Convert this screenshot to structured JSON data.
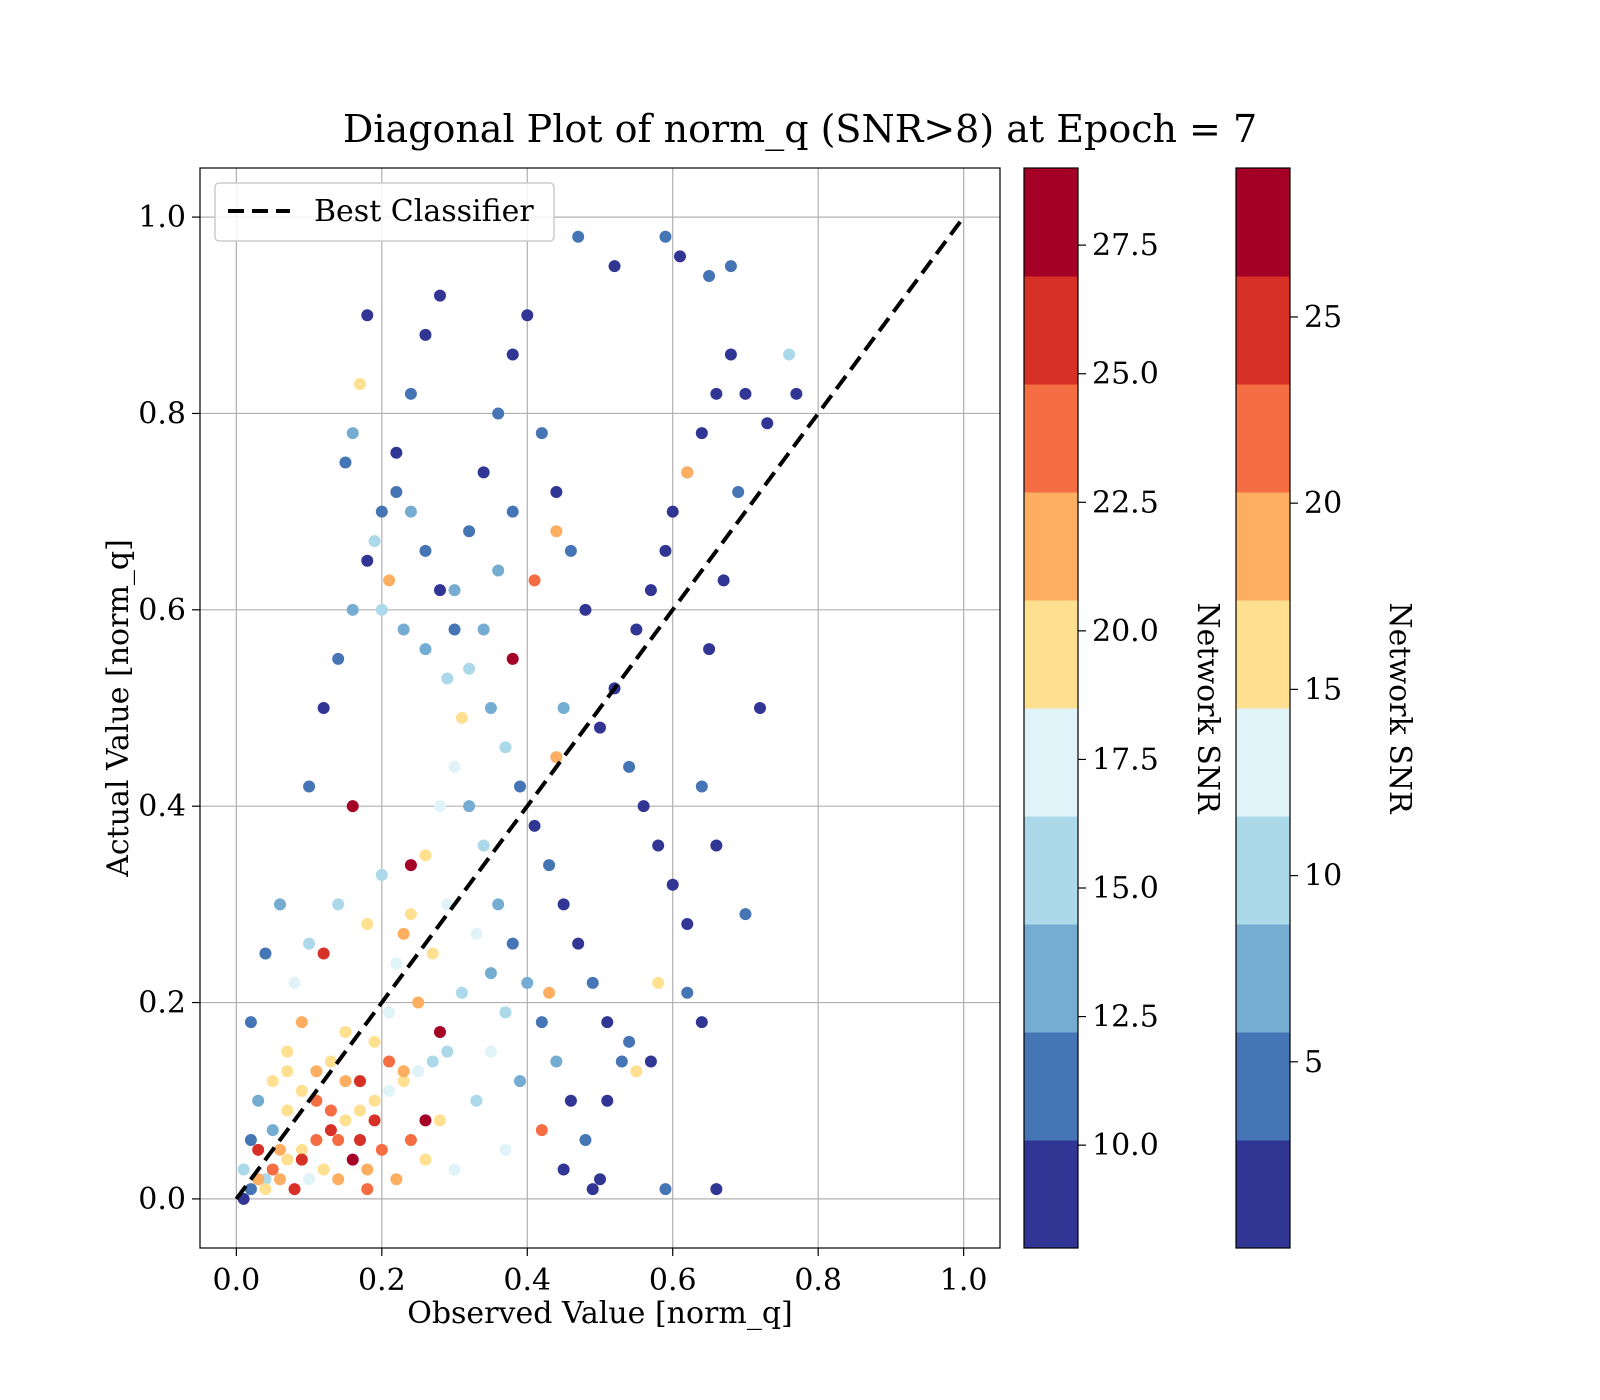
{
  "chart_data": {
    "type": "scatter",
    "title": "Diagonal Plot of norm_q (SNR>8) at Epoch = 7",
    "xlabel": "Observed Value [norm_q]",
    "ylabel": "Actual Value [norm_q]",
    "xlim": [
      -0.05,
      1.05
    ],
    "ylim": [
      -0.05,
      1.05
    ],
    "xticks": [
      "0.0",
      "0.2",
      "0.4",
      "0.6",
      "0.8",
      "1.0"
    ],
    "yticks": [
      "0.0",
      "0.2",
      "0.4",
      "0.6",
      "0.8",
      "1.0"
    ],
    "grid": true,
    "legend": {
      "placement": "upper-left",
      "entries": [
        {
          "label": "Best Classifier",
          "style": "dashed",
          "color": "#000000"
        }
      ]
    },
    "reference_line": {
      "label": "Best Classifier",
      "points": [
        [
          0.0,
          0.0
        ],
        [
          1.0,
          1.0
        ]
      ]
    },
    "colormap": "RdYlBu_r",
    "colormap_bins": [
      "#313695",
      "#4575b4",
      "#74add1",
      "#abd9e9",
      "#e0f3f8",
      "#fee090",
      "#fdae61",
      "#f46d43",
      "#d73027",
      "#a50026"
    ],
    "colorbars": [
      {
        "label": "Network SNR",
        "range": [
          8.0,
          29.0
        ],
        "tick_values": [
          10.0,
          12.5,
          15.0,
          17.5,
          20.0,
          22.5,
          25.0,
          27.5
        ],
        "tick_labels": [
          "10.0",
          "12.5",
          "15.0",
          "17.5",
          "20.0",
          "22.5",
          "25.0",
          "27.5"
        ]
      },
      {
        "label": "Network SNR",
        "range": [
          0.0,
          29.0
        ],
        "tick_values": [
          5,
          10,
          15,
          20,
          25
        ],
        "tick_labels": [
          "5",
          "10",
          "15",
          "20",
          "25"
        ]
      }
    ],
    "points": [
      [
        0.01,
        0.0,
        9
      ],
      [
        0.02,
        0.01,
        12
      ],
      [
        0.03,
        0.02,
        22
      ],
      [
        0.04,
        0.01,
        20
      ],
      [
        0.05,
        0.03,
        24
      ],
      [
        0.06,
        0.02,
        21
      ],
      [
        0.07,
        0.04,
        19
      ],
      [
        0.08,
        0.01,
        26
      ],
      [
        0.09,
        0.05,
        20
      ],
      [
        0.1,
        0.02,
        18
      ],
      [
        0.11,
        0.06,
        23
      ],
      [
        0.12,
        0.03,
        19
      ],
      [
        0.13,
        0.07,
        25
      ],
      [
        0.14,
        0.02,
        21
      ],
      [
        0.15,
        0.08,
        20
      ],
      [
        0.16,
        0.04,
        27
      ],
      [
        0.17,
        0.09,
        19
      ],
      [
        0.18,
        0.03,
        22
      ],
      [
        0.19,
        0.1,
        20
      ],
      [
        0.2,
        0.05,
        24
      ],
      [
        0.21,
        0.11,
        18
      ],
      [
        0.22,
        0.02,
        21
      ],
      [
        0.23,
        0.12,
        19
      ],
      [
        0.24,
        0.06,
        23
      ],
      [
        0.25,
        0.13,
        17
      ],
      [
        0.26,
        0.04,
        20
      ],
      [
        0.27,
        0.14,
        16
      ],
      [
        0.28,
        0.08,
        19
      ],
      [
        0.29,
        0.15,
        15
      ],
      [
        0.3,
        0.03,
        18
      ],
      [
        0.05,
        0.12,
        20
      ],
      [
        0.07,
        0.15,
        19
      ],
      [
        0.09,
        0.18,
        21
      ],
      [
        0.11,
        0.1,
        24
      ],
      [
        0.13,
        0.14,
        20
      ],
      [
        0.15,
        0.17,
        19
      ],
      [
        0.17,
        0.12,
        25
      ],
      [
        0.19,
        0.16,
        20
      ],
      [
        0.21,
        0.19,
        18
      ],
      [
        0.23,
        0.13,
        21
      ],
      [
        0.12,
        0.25,
        26
      ],
      [
        0.16,
        0.4,
        28
      ],
      [
        0.24,
        0.34,
        27
      ],
      [
        0.28,
        0.17,
        28
      ],
      [
        0.38,
        0.55,
        28
      ],
      [
        0.26,
        0.08,
        27
      ],
      [
        0.03,
        0.05,
        26
      ],
      [
        0.09,
        0.04,
        25
      ],
      [
        0.14,
        0.06,
        24
      ],
      [
        0.18,
        0.01,
        23
      ],
      [
        0.08,
        0.22,
        17
      ],
      [
        0.1,
        0.26,
        16
      ],
      [
        0.14,
        0.3,
        15
      ],
      [
        0.18,
        0.28,
        19
      ],
      [
        0.22,
        0.24,
        18
      ],
      [
        0.2,
        0.33,
        16
      ],
      [
        0.24,
        0.29,
        19
      ],
      [
        0.26,
        0.35,
        20
      ],
      [
        0.28,
        0.4,
        17
      ],
      [
        0.3,
        0.44,
        18
      ],
      [
        0.1,
        0.42,
        12
      ],
      [
        0.12,
        0.5,
        10
      ],
      [
        0.14,
        0.55,
        11
      ],
      [
        0.16,
        0.6,
        13
      ],
      [
        0.18,
        0.65,
        9
      ],
      [
        0.2,
        0.7,
        12
      ],
      [
        0.22,
        0.76,
        10
      ],
      [
        0.24,
        0.82,
        11
      ],
      [
        0.26,
        0.88,
        9
      ],
      [
        0.28,
        0.92,
        10
      ],
      [
        0.3,
        0.62,
        13
      ],
      [
        0.32,
        0.68,
        12
      ],
      [
        0.34,
        0.74,
        9
      ],
      [
        0.36,
        0.8,
        11
      ],
      [
        0.38,
        0.86,
        10
      ],
      [
        0.4,
        0.9,
        9
      ],
      [
        0.42,
        0.78,
        12
      ],
      [
        0.44,
        0.72,
        10
      ],
      [
        0.46,
        0.66,
        11
      ],
      [
        0.48,
        0.6,
        9
      ],
      [
        0.32,
        0.4,
        14
      ],
      [
        0.34,
        0.36,
        15
      ],
      [
        0.36,
        0.3,
        13
      ],
      [
        0.38,
        0.26,
        12
      ],
      [
        0.4,
        0.22,
        14
      ],
      [
        0.42,
        0.18,
        11
      ],
      [
        0.44,
        0.14,
        13
      ],
      [
        0.46,
        0.1,
        10
      ],
      [
        0.48,
        0.06,
        12
      ],
      [
        0.5,
        0.02,
        9
      ],
      [
        0.35,
        0.5,
        13
      ],
      [
        0.37,
        0.46,
        16
      ],
      [
        0.39,
        0.42,
        12
      ],
      [
        0.41,
        0.38,
        10
      ],
      [
        0.43,
        0.34,
        11
      ],
      [
        0.45,
        0.3,
        9
      ],
      [
        0.47,
        0.26,
        10
      ],
      [
        0.49,
        0.22,
        12
      ],
      [
        0.51,
        0.18,
        9
      ],
      [
        0.53,
        0.14,
        11
      ],
      [
        0.5,
        0.48,
        10
      ],
      [
        0.52,
        0.52,
        9
      ],
      [
        0.54,
        0.44,
        11
      ],
      [
        0.56,
        0.4,
        9
      ],
      [
        0.58,
        0.36,
        10
      ],
      [
        0.6,
        0.32,
        9
      ],
      [
        0.62,
        0.28,
        10
      ],
      [
        0.55,
        0.58,
        9
      ],
      [
        0.57,
        0.62,
        10
      ],
      [
        0.59,
        0.66,
        9
      ],
      [
        0.6,
        0.7,
        10
      ],
      [
        0.62,
        0.74,
        11
      ],
      [
        0.64,
        0.78,
        9
      ],
      [
        0.66,
        0.82,
        10
      ],
      [
        0.68,
        0.86,
        9
      ],
      [
        0.61,
        0.96,
        10
      ],
      [
        0.59,
        0.98,
        11
      ],
      [
        0.47,
        0.98,
        12
      ],
      [
        0.52,
        0.95,
        9
      ],
      [
        0.65,
        0.94,
        11
      ],
      [
        0.68,
        0.95,
        12
      ],
      [
        0.7,
        0.82,
        9
      ],
      [
        0.72,
        0.5,
        9
      ],
      [
        0.7,
        0.29,
        12
      ],
      [
        0.66,
        0.36,
        9
      ],
      [
        0.64,
        0.42,
        11
      ],
      [
        0.65,
        0.56,
        10
      ],
      [
        0.67,
        0.63,
        9
      ],
      [
        0.69,
        0.72,
        11
      ],
      [
        0.77,
        0.82,
        9
      ],
      [
        0.76,
        0.86,
        15
      ],
      [
        0.73,
        0.79,
        9
      ],
      [
        0.62,
        0.74,
        22
      ],
      [
        0.58,
        0.22,
        19
      ],
      [
        0.66,
        0.01,
        9
      ],
      [
        0.62,
        0.21,
        12
      ],
      [
        0.64,
        0.18,
        10
      ],
      [
        0.59,
        0.01,
        12
      ],
      [
        0.54,
        0.16,
        11
      ],
      [
        0.57,
        0.14,
        9
      ],
      [
        0.55,
        0.13,
        20
      ],
      [
        0.51,
        0.1,
        9
      ],
      [
        0.49,
        0.01,
        10
      ],
      [
        0.45,
        0.03,
        9
      ],
      [
        0.42,
        0.07,
        23
      ],
      [
        0.43,
        0.21,
        22
      ],
      [
        0.44,
        0.45,
        21
      ],
      [
        0.45,
        0.5,
        13
      ],
      [
        0.41,
        0.63,
        23
      ],
      [
        0.44,
        0.68,
        22
      ],
      [
        0.17,
        0.83,
        19
      ],
      [
        0.16,
        0.78,
        14
      ],
      [
        0.15,
        0.75,
        12
      ],
      [
        0.18,
        0.9,
        10
      ],
      [
        0.19,
        0.67,
        16
      ],
      [
        0.21,
        0.63,
        21
      ],
      [
        0.23,
        0.58,
        14
      ],
      [
        0.26,
        0.56,
        13
      ],
      [
        0.29,
        0.53,
        15
      ],
      [
        0.31,
        0.49,
        20
      ],
      [
        0.06,
        0.3,
        14
      ],
      [
        0.04,
        0.25,
        12
      ],
      [
        0.02,
        0.18,
        11
      ],
      [
        0.03,
        0.1,
        13
      ],
      [
        0.05,
        0.07,
        14
      ],
      [
        0.07,
        0.09,
        20
      ],
      [
        0.01,
        0.03,
        15
      ],
      [
        0.02,
        0.06,
        12
      ],
      [
        0.04,
        0.02,
        16
      ],
      [
        0.06,
        0.05,
        21
      ],
      [
        0.33,
        0.1,
        16
      ],
      [
        0.35,
        0.15,
        18
      ],
      [
        0.37,
        0.05,
        17
      ],
      [
        0.39,
        0.12,
        14
      ],
      [
        0.31,
        0.21,
        16
      ],
      [
        0.33,
        0.27,
        17
      ],
      [
        0.35,
        0.23,
        13
      ],
      [
        0.37,
        0.19,
        15
      ],
      [
        0.29,
        0.3,
        18
      ],
      [
        0.27,
        0.25,
        20
      ],
      [
        0.25,
        0.2,
        22
      ],
      [
        0.23,
        0.27,
        21
      ],
      [
        0.21,
        0.14,
        23
      ],
      [
        0.19,
        0.08,
        25
      ],
      [
        0.17,
        0.06,
        26
      ],
      [
        0.15,
        0.12,
        22
      ],
      [
        0.13,
        0.09,
        24
      ],
      [
        0.11,
        0.13,
        21
      ],
      [
        0.09,
        0.11,
        20
      ],
      [
        0.07,
        0.13,
        19
      ],
      [
        0.38,
        0.7,
        12
      ],
      [
        0.36,
        0.64,
        14
      ],
      [
        0.34,
        0.58,
        13
      ],
      [
        0.32,
        0.54,
        16
      ],
      [
        0.3,
        0.58,
        11
      ],
      [
        0.28,
        0.62,
        10
      ],
      [
        0.26,
        0.66,
        12
      ],
      [
        0.24,
        0.7,
        14
      ],
      [
        0.22,
        0.72,
        11
      ],
      [
        0.2,
        0.6,
        15
      ]
    ]
  }
}
